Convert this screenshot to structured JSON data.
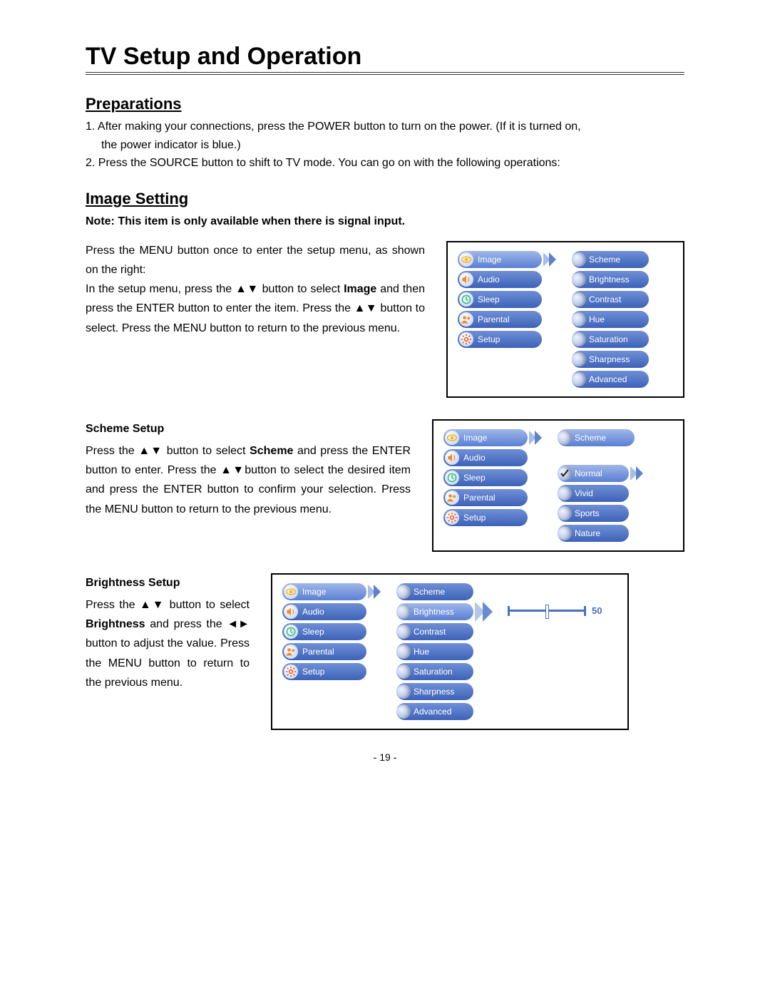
{
  "title": "TV Setup and Operation",
  "sections": {
    "preparations": {
      "heading": "Preparations",
      "item1_line1": "1. After making your connections, press the POWER button to turn on the power. (If it is turned on,",
      "item1_line2": "the power indicator is blue.)",
      "item2": "2. Press the SOURCE button to shift to TV mode. You can go on with the following operations:"
    },
    "image_setting": {
      "heading": "Image Setting",
      "note": "Note: This item is only available when there is signal input.",
      "intro": "Press the MENU button once to enter the setup menu, as shown on the right:\nIn the setup menu, press the ▲▼ button to select Image and then press the ENTER button to enter the item. Press the ▲▼ button to select. Press the MENU button to return to the previous menu.",
      "intro_bold_word": "Image",
      "scheme_heading": "Scheme Setup",
      "scheme_text": "Press the ▲▼ button to select Scheme and press the ENTER button to enter. Press the ▲▼button to select the desired item and press the ENTER button to confirm your selection. Press the MENU button to return to the previous menu.",
      "scheme_bold_word": "Scheme",
      "brightness_heading": "Brightness Setup",
      "brightness_text": "Press the ▲▼ button to select Brightness and press the ◄► button to adjust the value. Press the MENU button to return to the previous menu.",
      "brightness_bold_word": "Brightness"
    }
  },
  "menus": {
    "main_items": [
      {
        "label": "Image",
        "icon": "eye",
        "icon_color": "#f5b822"
      },
      {
        "label": "Audio",
        "icon": "speaker",
        "icon_color": "#f58a22"
      },
      {
        "label": "Sleep",
        "icon": "clock",
        "icon_color": "#35c27a"
      },
      {
        "label": "Parental",
        "icon": "people",
        "icon_color": "#f58a22"
      },
      {
        "label": "Setup",
        "icon": "gear",
        "icon_color": "#f55a22"
      }
    ],
    "sub_items": [
      "Scheme",
      "Brightness",
      "Contrast",
      "Hue",
      "Saturation",
      "Sharpness",
      "Advanced"
    ],
    "scheme_options": [
      "Normal",
      "Vivid",
      "Sports",
      "Nature"
    ],
    "fig1": {
      "main_selected": "Image"
    },
    "fig2": {
      "main_selected": "Image",
      "sub_selected": "Scheme",
      "option_selected": "Normal"
    },
    "fig3": {
      "main_selected": "Image",
      "sub_selected": "Brightness",
      "slider_value": 50,
      "slider_min": 0,
      "slider_max": 100
    }
  },
  "colors": {
    "pill_grad_top": "#6f8fd6",
    "pill_grad_bottom": "#3d62b8",
    "pill_selected_top": "#9fb7e8",
    "pill_selected_bottom": "#5a7fd4",
    "chevron": "#6a8bd0",
    "chevron_light": "#b5c7ea",
    "slider_color": "#4b6fc2",
    "border": "#000000",
    "text": "#000000",
    "pill_text": "#ffffff"
  },
  "typography": {
    "title_fontsize": 34,
    "heading_fontsize": 22,
    "body_fontsize": 16,
    "menu_label_fontsize": 12,
    "slider_value_fontsize": 13
  },
  "page_number": "- 19 -"
}
